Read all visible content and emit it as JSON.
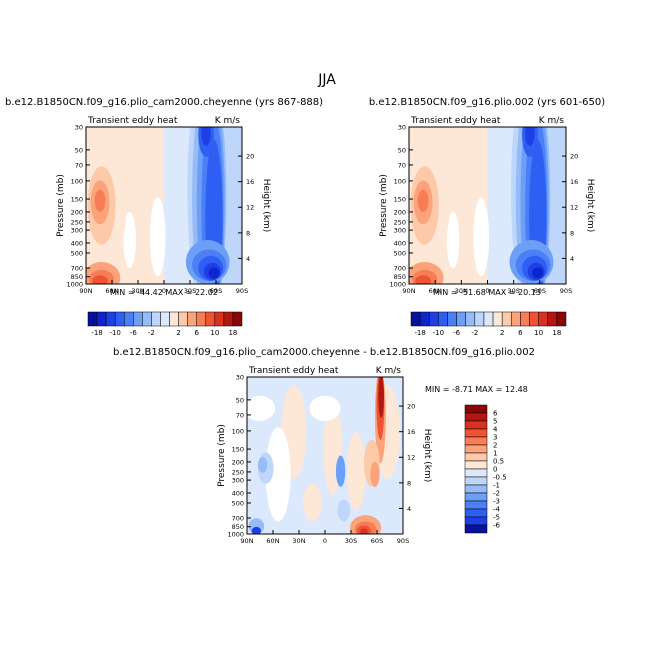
{
  "figure": {
    "title": "JJA"
  },
  "chart_data": [
    {
      "type": "heatmap",
      "title": "b.e12.B1850CN.f09_g16.plio_cam2000.cheyenne (yrs 867-888)",
      "left_label": "Transient eddy heat",
      "right_label": "K m/s",
      "ylabel": "Pressure (mb)",
      "ylabel_right": "Height (km)",
      "x_ticks": [
        "90N",
        "60N",
        "30N",
        "0",
        "30S",
        "60S",
        "90S"
      ],
      "y_ticks": [
        "30",
        "50",
        "70",
        "100",
        "150",
        "200",
        "250",
        "300",
        "400",
        "500",
        "700",
        "850",
        "1000"
      ],
      "y_ticks_right": [
        "20",
        "16",
        "12",
        "8",
        "4"
      ],
      "stats": "MIN = -44.42   MAX =  22.02",
      "min": -44.42,
      "max": 22.02
    },
    {
      "type": "heatmap",
      "title": "b.e12.B1850CN.f09_g16.plio.002 (yrs 601-650)",
      "left_label": "Transient eddy heat",
      "right_label": "K m/s",
      "ylabel": "Pressure (mb)",
      "ylabel_right": "Height (km)",
      "x_ticks": [
        "90N",
        "60N",
        "30N",
        "0",
        "30S",
        "60S",
        "90S"
      ],
      "y_ticks": [
        "30",
        "50",
        "70",
        "100",
        "150",
        "200",
        "250",
        "300",
        "400",
        "500",
        "700",
        "850",
        "1000"
      ],
      "y_ticks_right": [
        "20",
        "16",
        "12",
        "8",
        "4"
      ],
      "stats": "MIN = -51.68   MAX =  20.13",
      "min": -51.68,
      "max": 20.13
    },
    {
      "type": "heatmap",
      "title": "b.e12.B1850CN.f09_g16.plio_cam2000.cheyenne - b.e12.B1850CN.f09_g16.plio.002",
      "left_label": "Transient eddy heat",
      "right_label": "K m/s",
      "ylabel": "Pressure (mb)",
      "ylabel_right": "Height (km)",
      "x_ticks": [
        "90N",
        "60N",
        "30N",
        "0",
        "30S",
        "60S",
        "90S"
      ],
      "y_ticks": [
        "30",
        "50",
        "70",
        "100",
        "150",
        "200",
        "250",
        "300",
        "400",
        "500",
        "700",
        "850",
        "1000"
      ],
      "y_ticks_right": [
        "20",
        "16",
        "12",
        "8",
        "4"
      ],
      "stats": "MIN =  -8.71   MAX =  12.48",
      "min": -8.71,
      "max": 12.48
    }
  ],
  "colorbars": {
    "top": {
      "labels": [
        "-18",
        "-10",
        "-6",
        "-2",
        "2",
        "6",
        "10",
        "18"
      ],
      "colors": [
        "#08119a",
        "#0c26cc",
        "#1f3fe6",
        "#2f5ff2",
        "#4a7ff5",
        "#6e9ff7",
        "#95bcf8",
        "#bdd6fa",
        "#dce9fc",
        "#fde8d8",
        "#fcc9a9",
        "#fba47c",
        "#f67d55",
        "#ee5434",
        "#d8311c",
        "#b51610",
        "#8a0707"
      ]
    },
    "diff": {
      "labels": [
        "6",
        "5",
        "4",
        "3",
        "2",
        "1",
        "0.5",
        "0",
        "-0.5",
        "-1",
        "-2",
        "-3",
        "-4",
        "-5",
        "-6"
      ],
      "colors": [
        "#8a0707",
        "#b51610",
        "#d8311c",
        "#ee5434",
        "#f67d55",
        "#fba47c",
        "#fcc9a9",
        "#fde8d8",
        "#dce9fc",
        "#bdd6fa",
        "#95bcf8",
        "#6e9ff7",
        "#4a7ff5",
        "#2f5ff2",
        "#1f3fe6",
        "#08119a"
      ]
    }
  }
}
